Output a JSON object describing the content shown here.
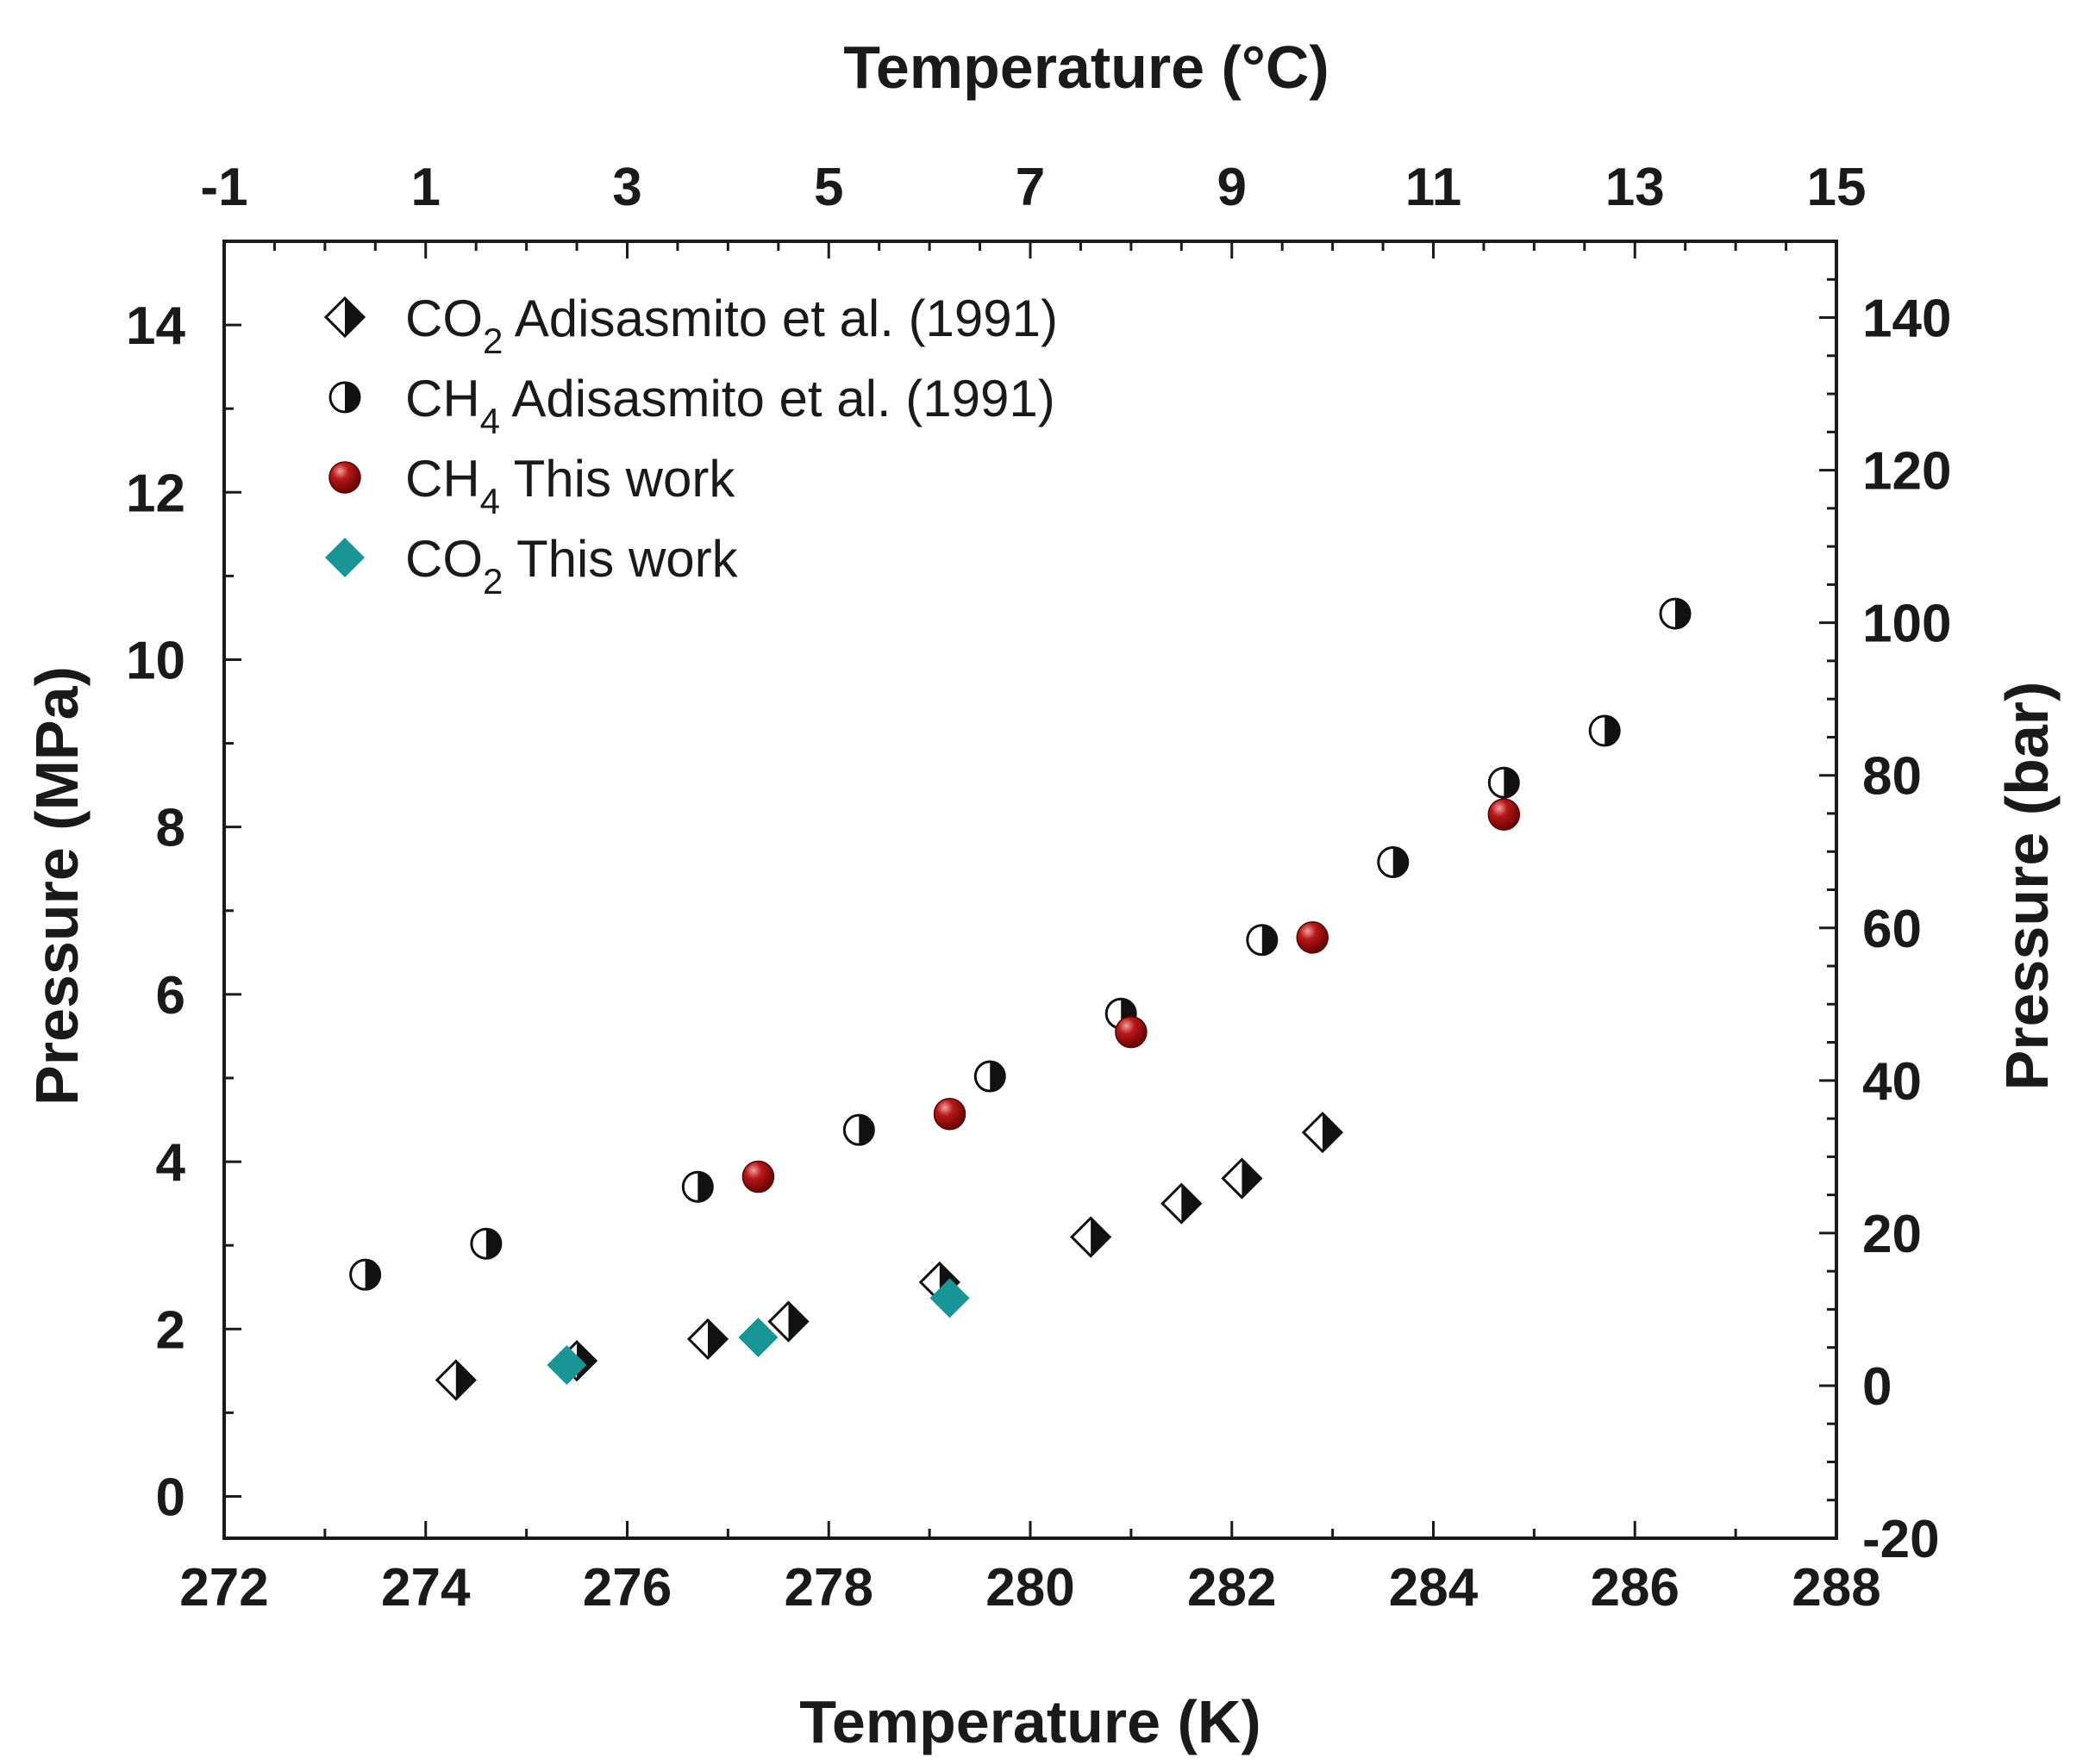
{
  "chart_data": {
    "type": "scatter",
    "xlabel": "Temperature (K)",
    "x2label": "Temperature (°C)",
    "ylabel": "Pressure (MPa)",
    "y2label": "Pressure (bar)",
    "xlim": [
      272,
      288
    ],
    "x2lim": [
      -1,
      15
    ],
    "ylim": [
      -0.5,
      15
    ],
    "y2lim": [
      -20,
      150
    ],
    "x_ticks": [
      272,
      274,
      276,
      278,
      280,
      282,
      284,
      286,
      288
    ],
    "x2_ticks": [
      -1,
      1,
      3,
      5,
      7,
      9,
      11,
      13,
      15
    ],
    "y_ticks": [
      0,
      2,
      4,
      6,
      8,
      10,
      12,
      14
    ],
    "y2_ticks": [
      -20,
      0,
      20,
      40,
      60,
      80,
      100,
      120,
      140
    ],
    "series": [
      {
        "name": "CO2 Adisasmito et al. (1991)",
        "label_main": "CO",
        "label_sub": "2",
        "label_rest": " Adisasmito et al. (1991)",
        "marker": "half-diamond",
        "color": "#000000",
        "points": [
          [
            274.3,
            1.39
          ],
          [
            275.5,
            1.62
          ],
          [
            276.8,
            1.88
          ],
          [
            277.6,
            2.09
          ],
          [
            279.1,
            2.56
          ],
          [
            280.6,
            3.1
          ],
          [
            281.5,
            3.5
          ],
          [
            282.1,
            3.8
          ],
          [
            282.9,
            4.35
          ]
        ]
      },
      {
        "name": "CH4 Adisasmito et al. (1991)",
        "label_main": "CH",
        "label_sub": "4",
        "label_rest": " Adisasmito et al. (1991)",
        "marker": "half-circle",
        "color": "#000000",
        "points": [
          [
            273.4,
            2.65
          ],
          [
            274.6,
            3.02
          ],
          [
            276.7,
            3.7
          ],
          [
            278.3,
            4.38
          ],
          [
            279.6,
            5.02
          ],
          [
            280.9,
            5.77
          ],
          [
            282.3,
            6.65
          ],
          [
            283.6,
            7.58
          ],
          [
            284.7,
            8.53
          ],
          [
            285.7,
            9.15
          ],
          [
            286.4,
            10.55
          ]
        ]
      },
      {
        "name": "CH4 This work",
        "label_main": "CH",
        "label_sub": "4",
        "label_rest": " This work",
        "marker": "sphere",
        "color": "#a01010",
        "points": [
          [
            277.3,
            3.82
          ],
          [
            279.2,
            4.57
          ],
          [
            281.0,
            5.55
          ],
          [
            282.8,
            6.68
          ],
          [
            284.7,
            8.15
          ]
        ]
      },
      {
        "name": "CO2 This work",
        "label_main": "CO",
        "label_sub": "2",
        "label_rest": " This work",
        "marker": "diamond",
        "color": "#1a9596",
        "points": [
          [
            275.4,
            1.57
          ],
          [
            277.3,
            1.9
          ],
          [
            279.2,
            2.37
          ]
        ]
      }
    ],
    "legend_position": "top-left"
  }
}
